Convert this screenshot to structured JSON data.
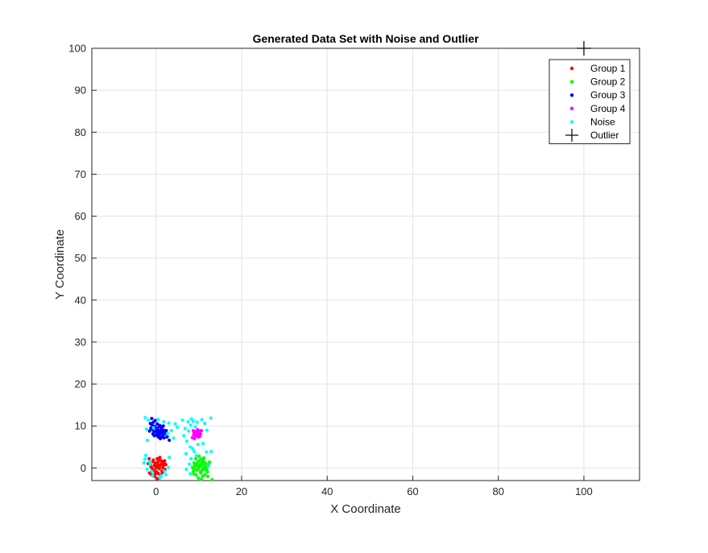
{
  "chart_data": {
    "type": "scatter",
    "title": "Generated Data Set with Noise and Outlier",
    "xlabel": "X Coordinate",
    "ylabel": "Y Coordinate",
    "xlim": [
      -15,
      113
    ],
    "ylim": [
      -3,
      100
    ],
    "grid": true,
    "legend_position": "top-right",
    "xticks": [
      0,
      20,
      40,
      60,
      80,
      100
    ],
    "yticks": [
      0,
      10,
      20,
      30,
      40,
      50,
      60,
      70,
      80,
      90,
      100
    ],
    "series": [
      {
        "name": "Group 1",
        "color": "#ff0000",
        "marker": "dot",
        "points": [
          [
            -0.5,
            -0.6
          ],
          [
            0.2,
            0.4
          ],
          [
            0.8,
            -0.2
          ],
          [
            -0.1,
            1.1
          ],
          [
            1.2,
            0.9
          ],
          [
            0.5,
            -1.3
          ],
          [
            -1.2,
            0.3
          ],
          [
            1.6,
            0.1
          ],
          [
            0.1,
            -0.9
          ],
          [
            -0.7,
            1.5
          ],
          [
            0.9,
            1.9
          ],
          [
            1.4,
            -0.8
          ],
          [
            -1.5,
            -1.2
          ],
          [
            0.3,
            2.2
          ],
          [
            -0.3,
            -2.0
          ],
          [
            1.9,
            1.3
          ],
          [
            0.6,
            0.7
          ],
          [
            -0.9,
            -0.1
          ],
          [
            2.1,
            -0.4
          ],
          [
            0.0,
            0.0
          ],
          [
            -1.8,
            1.0
          ],
          [
            1.1,
            -1.7
          ],
          [
            0.4,
            1.4
          ],
          [
            -0.4,
            0.6
          ],
          [
            1.7,
            0.6
          ],
          [
            0.7,
            -2.4
          ],
          [
            -1.1,
            -1.6
          ],
          [
            2.3,
            0.8
          ],
          [
            -0.2,
            -1.4
          ],
          [
            0.9,
            2.5
          ],
          [
            -1.6,
            2.2
          ],
          [
            0.2,
            -2.6
          ],
          [
            1.3,
            1.6
          ],
          [
            -0.8,
            -0.5
          ],
          [
            0.5,
            0.2
          ],
          [
            1.5,
            -1.1
          ],
          [
            -1.3,
            0.8
          ],
          [
            0.8,
            0.4
          ],
          [
            -0.6,
            1.9
          ],
          [
            2.0,
            1.7
          ]
        ]
      },
      {
        "name": "Group 2",
        "color": "#00ff00",
        "marker": "dot",
        "points": [
          [
            10.2,
            0.3
          ],
          [
            9.6,
            -0.5
          ],
          [
            10.8,
            0.9
          ],
          [
            11.3,
            -0.3
          ],
          [
            9.1,
            0.6
          ],
          [
            10.5,
            -1.2
          ],
          [
            11.8,
            0.2
          ],
          [
            9.8,
            1.5
          ],
          [
            10.0,
            -0.1
          ],
          [
            11.1,
            1.6
          ],
          [
            8.7,
            -0.8
          ],
          [
            10.6,
            2.1
          ],
          [
            12.0,
            -1.0
          ],
          [
            9.4,
            -1.7
          ],
          [
            10.9,
            -2.0
          ],
          [
            11.6,
            1.1
          ],
          [
            8.9,
            1.2
          ],
          [
            10.3,
            0.8
          ],
          [
            9.9,
            -2.4
          ],
          [
            11.0,
            0.0
          ],
          [
            12.3,
            0.7
          ],
          [
            8.5,
            0.1
          ],
          [
            10.7,
            -0.6
          ],
          [
            9.3,
            2.2
          ],
          [
            11.4,
            -1.6
          ],
          [
            10.1,
            2.8
          ],
          [
            9.7,
            0.4
          ],
          [
            11.9,
            -0.5
          ],
          [
            10.4,
            -0.9
          ],
          [
            8.8,
            -1.4
          ],
          [
            12.5,
            1.4
          ],
          [
            10.8,
            1.3
          ],
          [
            9.5,
            1.0
          ],
          [
            11.2,
            2.4
          ],
          [
            10.6,
            -2.7
          ],
          [
            13.1,
            -2.8
          ],
          [
            9.0,
            -0.2
          ],
          [
            11.5,
            0.5
          ],
          [
            10.3,
            1.9
          ],
          [
            12.1,
            -2.0
          ]
        ]
      },
      {
        "name": "Group 3",
        "color": "#0000ff",
        "marker": "dot",
        "points": [
          [
            0.2,
            9.3
          ],
          [
            -0.5,
            8.6
          ],
          [
            0.8,
            8.0
          ],
          [
            1.2,
            9.1
          ],
          [
            -0.9,
            10.2
          ],
          [
            0.5,
            7.4
          ],
          [
            1.6,
            7.8
          ],
          [
            -0.3,
            9.9
          ],
          [
            0.0,
            8.8
          ],
          [
            1.9,
            7.2
          ],
          [
            -1.2,
            9.5
          ],
          [
            0.7,
            9.8
          ],
          [
            1.4,
            8.4
          ],
          [
            -0.7,
            8.1
          ],
          [
            0.3,
            10.5
          ],
          [
            2.2,
            8.2
          ],
          [
            -1.5,
            8.8
          ],
          [
            1.0,
            7.0
          ],
          [
            0.6,
            8.9
          ],
          [
            -0.2,
            11.3
          ],
          [
            1.8,
            9.0
          ],
          [
            -1.0,
            11.8
          ],
          [
            2.6,
            7.4
          ],
          [
            0.9,
            10.1
          ],
          [
            -0.4,
            7.7
          ],
          [
            1.3,
            9.6
          ],
          [
            0.1,
            7.9
          ],
          [
            -0.8,
            9.2
          ],
          [
            2.0,
            8.6
          ],
          [
            0.4,
            8.3
          ],
          [
            3.1,
            6.6
          ],
          [
            -1.3,
            10.6
          ],
          [
            1.1,
            8.5
          ],
          [
            -0.1,
            9.6
          ],
          [
            0.8,
            7.6
          ],
          [
            1.7,
            10.0
          ],
          [
            -0.6,
            10.9
          ],
          [
            2.4,
            8.9
          ],
          [
            0.2,
            8.1
          ],
          [
            1.5,
            7.3
          ]
        ]
      },
      {
        "name": "Group 4",
        "color": "#ff00ff",
        "marker": "dot",
        "points": [
          [
            9.5,
            8.2
          ],
          [
            10.1,
            8.8
          ],
          [
            8.8,
            7.9
          ],
          [
            9.9,
            7.4
          ],
          [
            10.4,
            8.1
          ],
          [
            9.1,
            8.6
          ],
          [
            8.5,
            7.2
          ],
          [
            9.7,
            9.1
          ],
          [
            10.0,
            7.8
          ],
          [
            8.9,
            8.4
          ],
          [
            9.3,
            7.6
          ],
          [
            10.6,
            8.9
          ],
          [
            9.6,
            8.0
          ],
          [
            8.7,
            8.9
          ],
          [
            10.2,
            7.5
          ],
          [
            9.4,
            8.7
          ],
          [
            9.0,
            7.0
          ],
          [
            9.8,
            8.5
          ]
        ]
      },
      {
        "name": "Noise",
        "color": "#00ffff",
        "marker": "dot",
        "points": [
          [
            -2.5,
            12.0
          ],
          [
            -1.8,
            11.4
          ],
          [
            0.5,
            11.6
          ],
          [
            1.8,
            11.0
          ],
          [
            3.0,
            10.7
          ],
          [
            6.2,
            11.4
          ],
          [
            7.5,
            11.0
          ],
          [
            8.3,
            11.7
          ],
          [
            9.6,
            10.9
          ],
          [
            10.7,
            11.5
          ],
          [
            11.4,
            10.6
          ],
          [
            12.8,
            11.9
          ],
          [
            3.6,
            8.9
          ],
          [
            2.7,
            8.2
          ],
          [
            -2.2,
            9.2
          ],
          [
            5.0,
            9.7
          ],
          [
            6.8,
            9.4
          ],
          [
            7.6,
            8.8
          ],
          [
            8.1,
            10.2
          ],
          [
            11.9,
            9.0
          ],
          [
            9.2,
            9.8
          ],
          [
            4.1,
            7.1
          ],
          [
            -2.0,
            6.6
          ],
          [
            7.2,
            6.4
          ],
          [
            9.8,
            5.6
          ],
          [
            11.0,
            5.8
          ],
          [
            8.0,
            5.0
          ],
          [
            7.0,
            3.4
          ],
          [
            8.9,
            3.9
          ],
          [
            -2.4,
            3.0
          ],
          [
            11.8,
            3.8
          ],
          [
            12.9,
            3.9
          ],
          [
            -1.5,
            1.5
          ],
          [
            -2.1,
            -0.3
          ],
          [
            -2.6,
            2.1
          ],
          [
            -1.0,
            -0.8
          ],
          [
            -0.8,
            -1.8
          ],
          [
            1.2,
            -1.9
          ],
          [
            2.3,
            -1.6
          ],
          [
            2.9,
            0.1
          ],
          [
            3.1,
            2.5
          ],
          [
            7.1,
            -0.3
          ],
          [
            7.8,
            0.9
          ],
          [
            8.2,
            2.2
          ],
          [
            8.0,
            -1.4
          ],
          [
            9.4,
            2.9
          ],
          [
            8.6,
            4.6
          ],
          [
            6.5,
            7.7
          ],
          [
            2.0,
            -0.8
          ],
          [
            -1.4,
            0.8
          ],
          [
            0.9,
            -2.3
          ],
          [
            -2.8,
            1.2
          ],
          [
            8.7,
            11.1
          ],
          [
            -0.6,
            9.6
          ],
          [
            4.5,
            10.5
          ],
          [
            12.2,
            0.4
          ]
        ]
      },
      {
        "name": "Outlier",
        "color": "#000000",
        "marker": "plus",
        "points": [
          [
            100,
            100
          ]
        ]
      }
    ]
  }
}
